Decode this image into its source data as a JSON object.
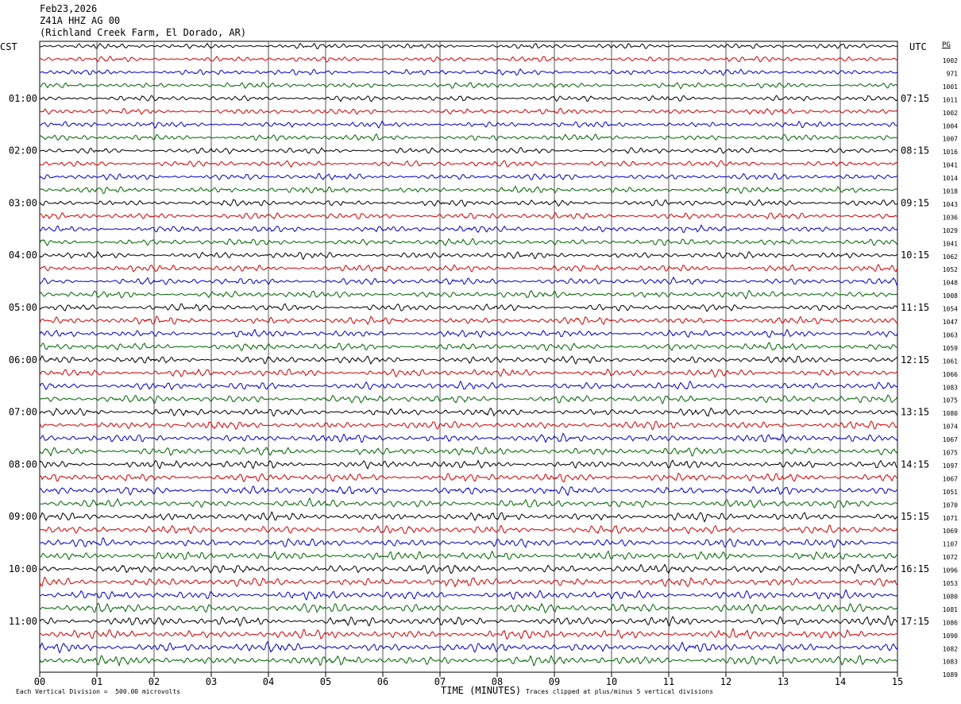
{
  "header": {
    "date": "Feb23,2026",
    "station": "Z41A HHZ AG 00",
    "location": "(Richland Creek Farm, El Dorado, AR)"
  },
  "left_tz": "CST",
  "right_tz": "UTC",
  "pg_label": "PG",
  "footer": {
    "scale": "Each Vertical Division =  500.00 microvolts",
    "clip": "Traces clipped at plus/minus 5 vertical divisions",
    "xlabel": "TIME (MINUTES)"
  },
  "colors": {
    "black": "#000000",
    "red": "#d40000",
    "blue": "#0000c8",
    "green": "#006400",
    "grid": "#555555"
  },
  "chart_data": {
    "type": "line",
    "title": "Z41A HHZ AG 00",
    "xlabel": "TIME (MINUTES)",
    "xlim": [
      0,
      15
    ],
    "x_ticks": [
      "00",
      "01",
      "02",
      "03",
      "04",
      "05",
      "06",
      "07",
      "08",
      "09",
      "10",
      "11",
      "12",
      "13",
      "14",
      "15"
    ],
    "left_hour_labels": [
      "01:00",
      "02:00",
      "03:00",
      "04:00",
      "05:00",
      "06:00",
      "07:00",
      "08:00",
      "09:00",
      "10:00",
      "11:00"
    ],
    "right_hour_labels": [
      "07:15",
      "08:15",
      "09:15",
      "10:15",
      "11:15",
      "12:15",
      "13:15",
      "14:15",
      "15:15",
      "16:15",
      "17:15"
    ],
    "trace_color_cycle": [
      "black",
      "red",
      "blue",
      "green"
    ],
    "trace_offsets": [
      1002,
      971,
      1001,
      1011,
      1002,
      1004,
      1007,
      1016,
      1041,
      1014,
      1018,
      1043,
      1036,
      1029,
      1041,
      1062,
      1052,
      1048,
      1008,
      1054,
      1047,
      1063,
      1059,
      1061,
      1066,
      1083,
      1075,
      1080,
      1074,
      1067,
      1075,
      1097,
      1067,
      1051,
      1070,
      1071,
      1069,
      1107,
      1072,
      1096,
      1053,
      1080,
      1081,
      1086,
      1090,
      1082,
      1083,
      1089
    ]
  }
}
